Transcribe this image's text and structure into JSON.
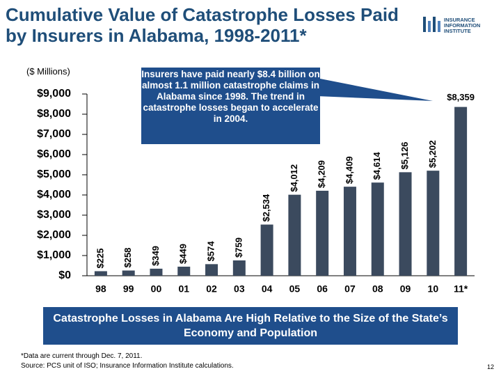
{
  "chart_data": {
    "type": "bar",
    "title": "Cumulative Value of Catastrophe Losses Paid by Insurers in Alabama, 1998-2011*",
    "subtitle": "($ Millions)",
    "annotation": "Insurers have paid nearly $8.4 billion on almost 1.1 million catastrophe claims in Alabama since 1998.  The trend in catastrophe losses began to accelerate in 2004.",
    "categories": [
      "98",
      "99",
      "00",
      "01",
      "02",
      "03",
      "04",
      "05",
      "06",
      "07",
      "08",
      "09",
      "10",
      "11*"
    ],
    "values": [
      225,
      258,
      349,
      449,
      574,
      759,
      2534,
      4012,
      4209,
      4409,
      4614,
      5126,
      5202,
      8359
    ],
    "value_labels": [
      "$225",
      "$258",
      "$349",
      "$449",
      "$574",
      "$759",
      "$2,534",
      "$4,012",
      "$4,209",
      "$4,409",
      "$4,614",
      "$5,126",
      "$5,202",
      "$8,359"
    ],
    "color": "#3b4a5e",
    "ylim": [
      0,
      9000
    ],
    "yticks": [
      {
        "value": 0,
        "label": "$0"
      },
      {
        "value": 1000,
        "label": "$1,000"
      },
      {
        "value": 2000,
        "label": "$2,000"
      },
      {
        "value": 3000,
        "label": "$3,000"
      },
      {
        "value": 4000,
        "label": "$4,000"
      },
      {
        "value": 5000,
        "label": "$5,000"
      },
      {
        "value": 6000,
        "label": "$6,000"
      },
      {
        "value": 7000,
        "label": "$7,000"
      },
      {
        "value": 8000,
        "label": "$8,000"
      },
      {
        "value": 9000,
        "label": "$9,000"
      }
    ],
    "grid": false
  },
  "banner": "Catastrophe Losses in Alabama Are High Relative to the Size of the State’s Economy and Population",
  "notes": [
    "*Data are current through Dec. 7, 2011.",
    "Source: PCS unit of ISO; Insurance Information Institute calculations."
  ],
  "page_number": "12",
  "logo": [
    "INSURANCE",
    "INFORMATION",
    "INSTITUTE"
  ]
}
